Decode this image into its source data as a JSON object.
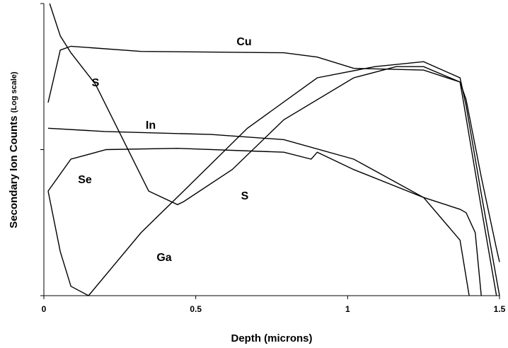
{
  "chart_data": {
    "type": "line",
    "x_label": "Depth  (microns)",
    "y_label": "Secondary Ion Counts",
    "y_label_note": "(Log scale)",
    "xlim": [
      0,
      1.5
    ],
    "xticks": [
      0,
      0.5,
      1,
      1.5
    ],
    "ylim": [
      1,
      100
    ],
    "yticks": [
      1,
      10,
      100
    ],
    "y_log_scale": true,
    "annotations": [
      "Cu",
      "S",
      "In",
      "Se",
      "S",
      "Ga"
    ],
    "series": [
      {
        "name": "Cu",
        "color": "#000000",
        "x": [
          0.014,
          0.054,
          0.089,
          0.32,
          0.79,
          0.9,
          1.02,
          1.25,
          1.37,
          1.39,
          1.44,
          1.49,
          1.5
        ],
        "values": [
          21,
          48,
          51,
          47,
          46,
          43,
          36,
          35,
          29,
          22,
          6.5,
          2.1,
          1.7
        ]
      },
      {
        "name": "S",
        "color": "#000000",
        "x": [
          0.019,
          0.054,
          0.089,
          0.17,
          0.345,
          0.44,
          0.46,
          0.62,
          0.79,
          1.02,
          1.16,
          1.25,
          1.37,
          1.38,
          1.44,
          1.49
        ],
        "values": [
          100,
          60,
          46,
          28,
          5.2,
          4.2,
          4.4,
          7.3,
          16,
          31,
          37,
          37,
          29,
          22,
          4,
          1
        ]
      },
      {
        "name": "Ga",
        "color": "#000000",
        "x": [
          0.014,
          0.054,
          0.089,
          0.147,
          0.32,
          0.46,
          0.67,
          0.9,
          1.09,
          1.25,
          1.37,
          1.39,
          1.44,
          1.5
        ],
        "values": [
          5.2,
          2,
          1.16,
          1,
          2.7,
          5.2,
          14,
          31,
          37,
          40,
          31,
          20,
          5,
          1
        ]
      },
      {
        "name": "In",
        "color": "#000000",
        "x": [
          0.014,
          0.2,
          0.55,
          0.79,
          1.02,
          1.25,
          1.37,
          1.39,
          1.42,
          1.44
        ],
        "values": [
          14,
          13.3,
          12.7,
          11.7,
          8.6,
          4.7,
          3.9,
          3.7,
          2.7,
          1
        ]
      },
      {
        "name": "Se",
        "color": "#000000",
        "x": [
          0.014,
          0.089,
          0.205,
          0.44,
          0.79,
          0.88,
          0.9,
          1.02,
          1.25,
          1.37,
          1.4
        ],
        "values": [
          5.2,
          8.6,
          10,
          10.2,
          9.6,
          8.6,
          9.6,
          7.3,
          4.7,
          2.4,
          1
        ]
      }
    ]
  }
}
